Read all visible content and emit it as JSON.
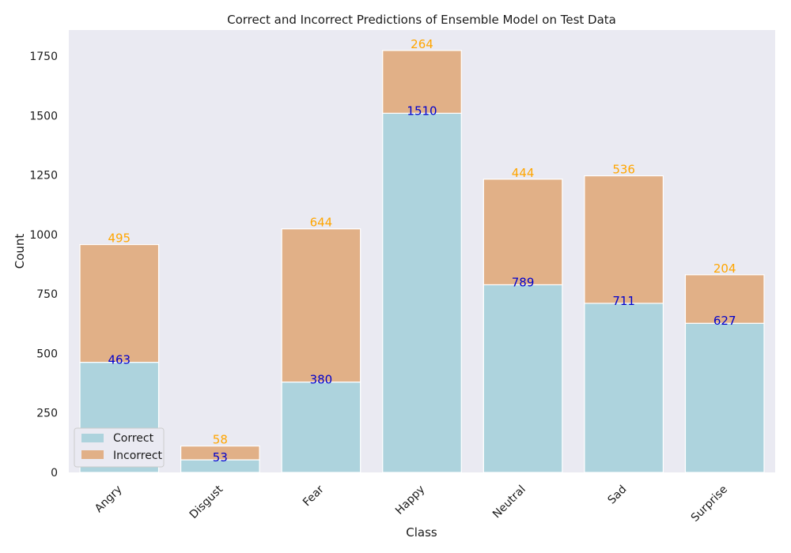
{
  "chart_data": {
    "type": "bar",
    "stacked": true,
    "title": "Correct and Incorrect Predictions of Ensemble Model on Test Data",
    "xlabel": "Class",
    "ylabel": "Count",
    "categories": [
      "Angry",
      "Disgust",
      "Fear",
      "Happy",
      "Neutral",
      "Sad",
      "Surprise"
    ],
    "series": [
      {
        "name": "Correct",
        "color": "#add3dd",
        "label_color": "#0000cc",
        "values": [
          463,
          53,
          380,
          1510,
          789,
          711,
          627
        ]
      },
      {
        "name": "Incorrect",
        "color": "#e1b087",
        "label_color": "#ffa500",
        "values": [
          495,
          58,
          644,
          264,
          444,
          536,
          204
        ]
      }
    ],
    "ylim": [
      0,
      1860
    ],
    "yticks": [
      0,
      250,
      500,
      750,
      1000,
      1250,
      1500,
      1750
    ],
    "grid": false,
    "legend_position": "lower-left",
    "background": "#eaeaf2",
    "xtick_rotation": -45
  }
}
